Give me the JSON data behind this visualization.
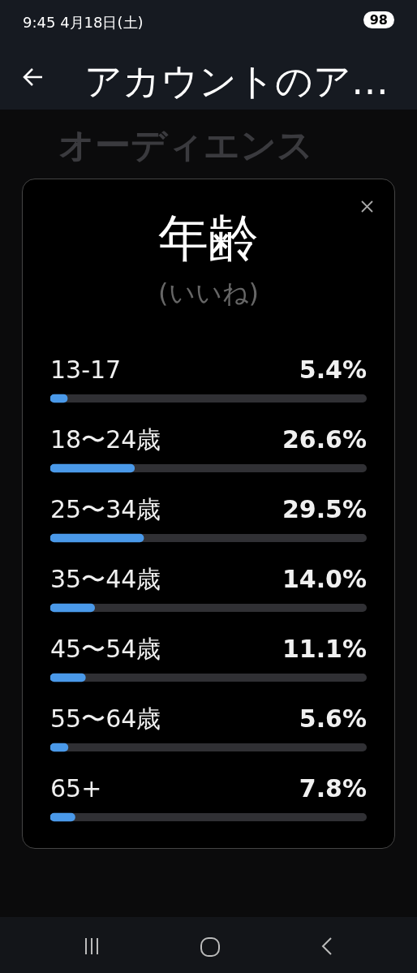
{
  "chart_data": {
    "type": "bar",
    "orientation": "horizontal",
    "title": "年齢",
    "subtitle": "(いいね)",
    "annotations": [
      "9:45  4月18日(土)",
      "98",
      "アカウントのア…",
      "オーディエンス"
    ],
    "categories": [
      "13-17",
      "18〜24歳",
      "25〜34歳",
      "35〜44歳",
      "45〜54歳",
      "55〜64歳",
      "65+"
    ],
    "values": [
      5.4,
      26.6,
      29.5,
      14.0,
      11.1,
      5.6,
      7.8
    ],
    "value_labels": [
      "5.4%",
      "26.6%",
      "29.5%",
      "14.0%",
      "11.1%",
      "5.6%",
      "7.8%"
    ],
    "color": "#4a99e9",
    "xlim": [
      0,
      100
    ],
    "tick_labels": "y",
    "legend": false
  }
}
